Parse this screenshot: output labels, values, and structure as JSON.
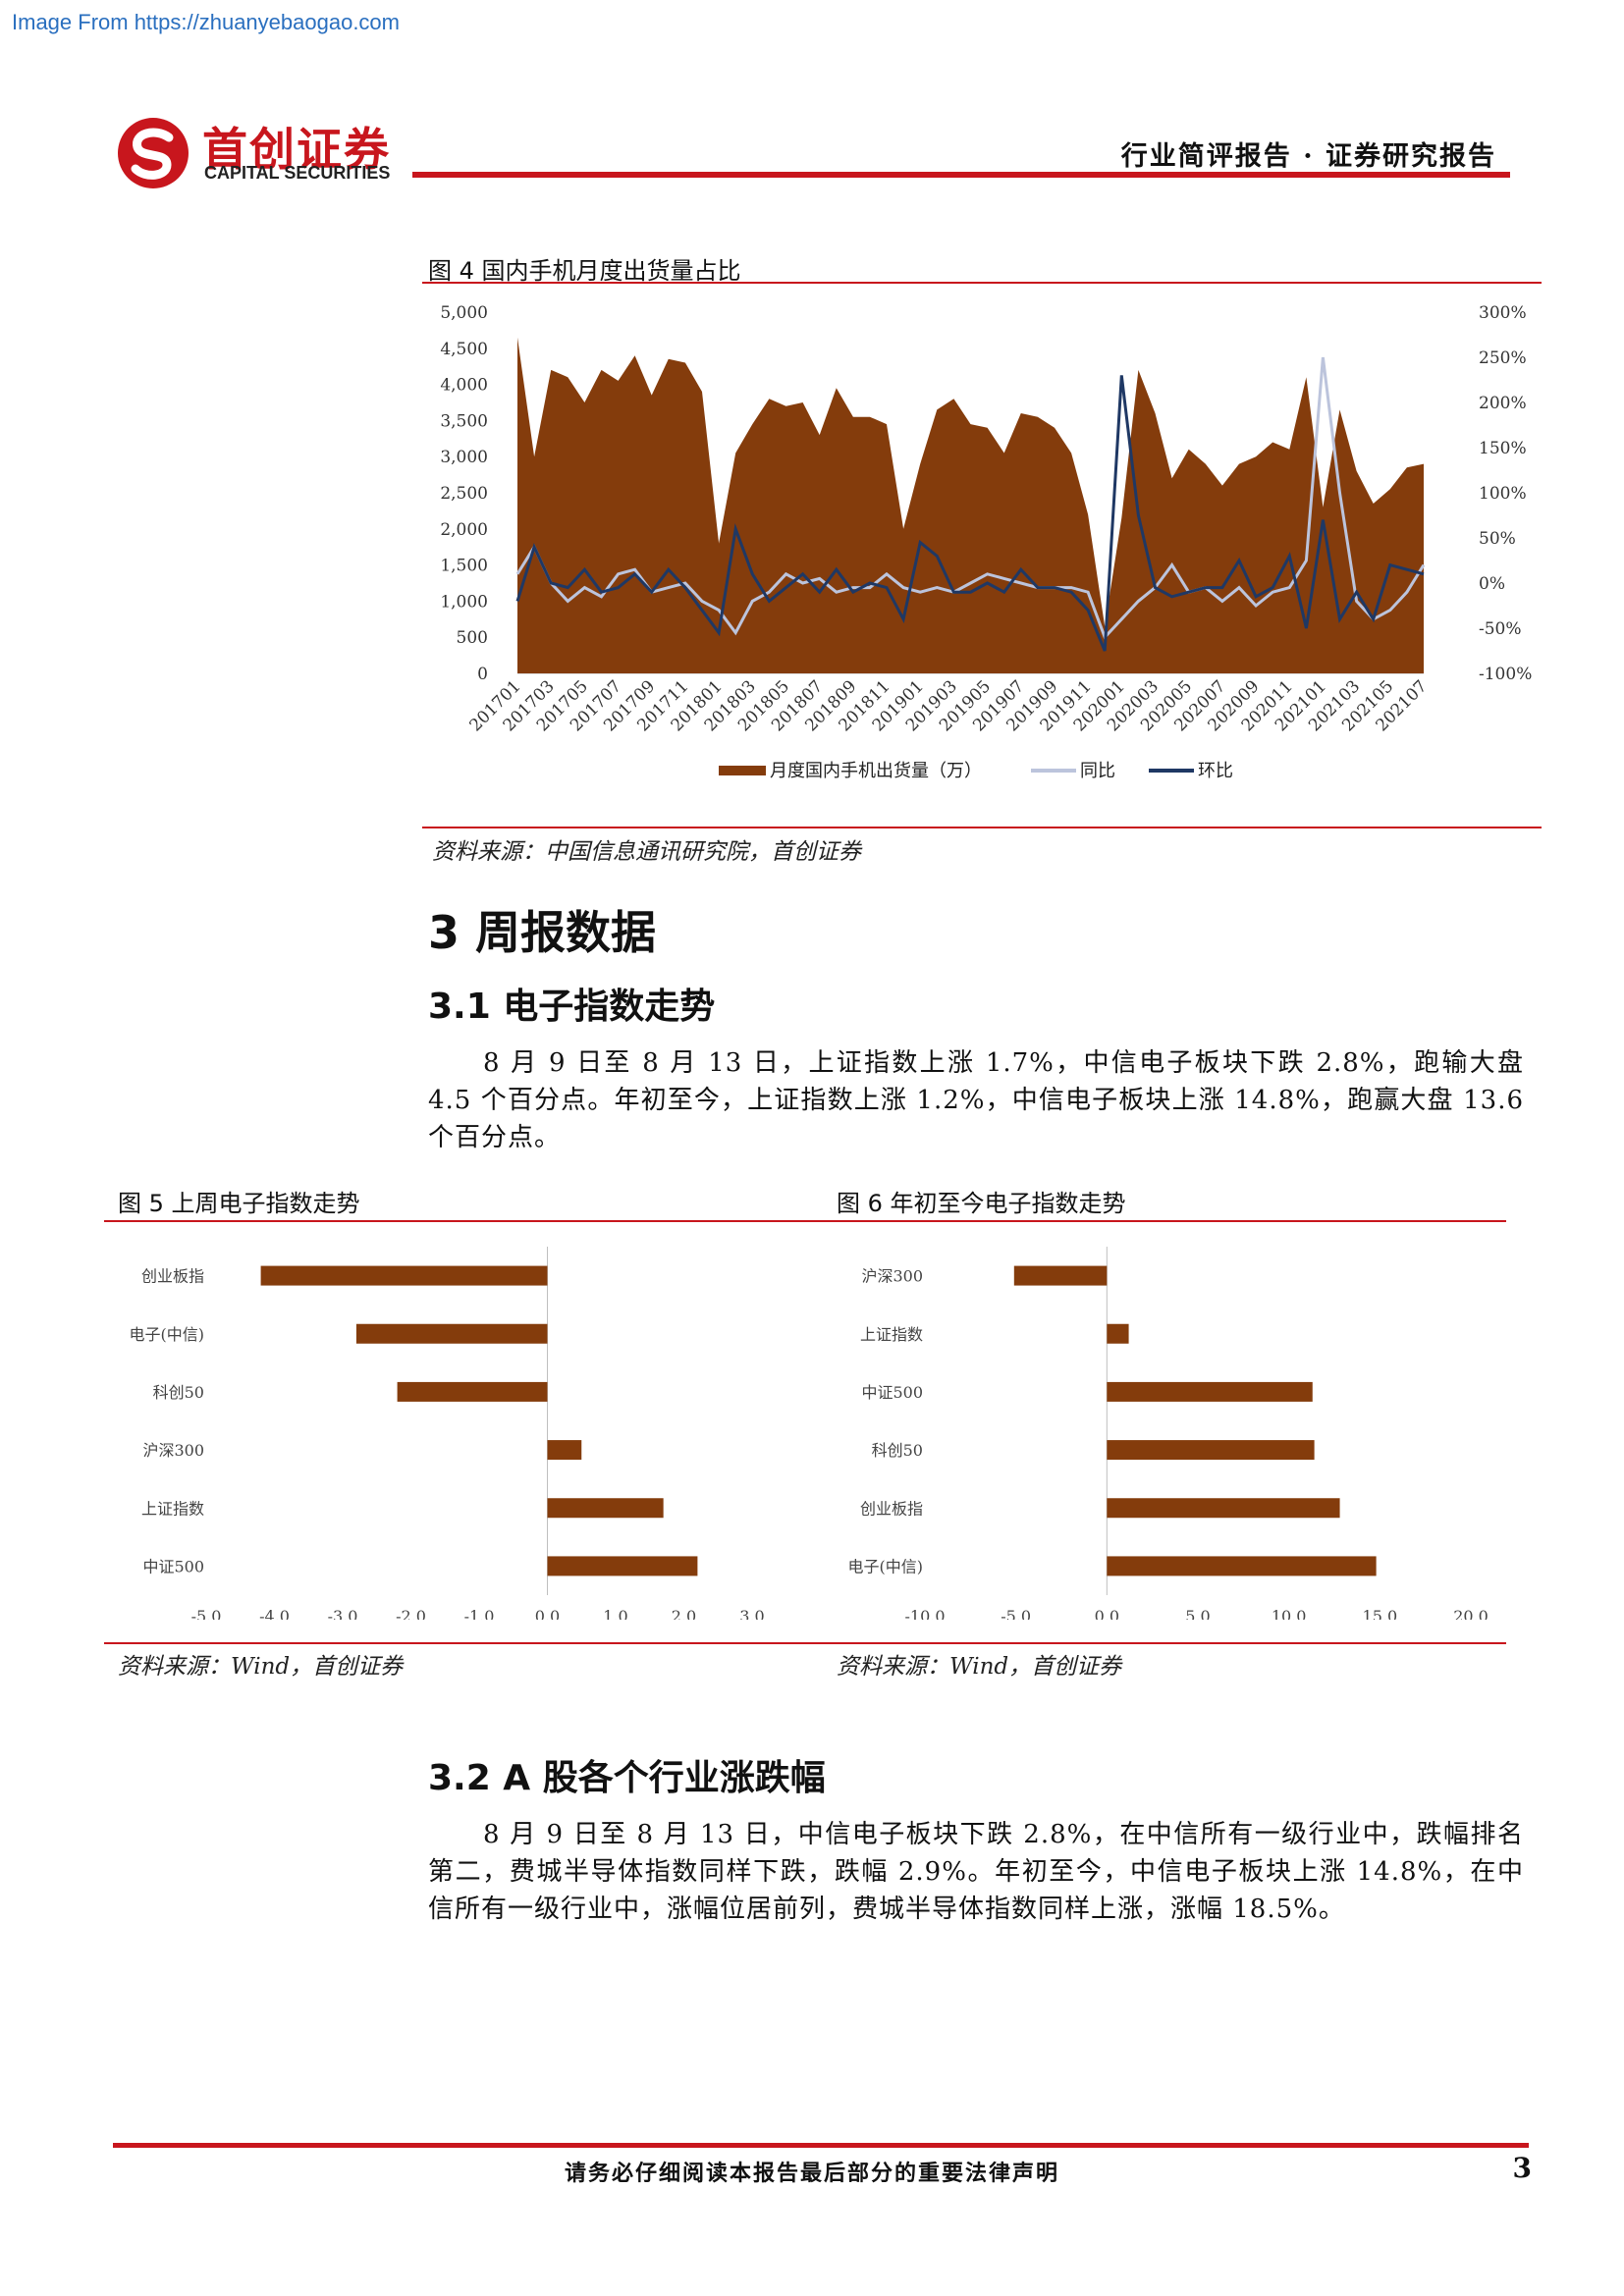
{
  "watermark": "Image From https://zhuanyebaogao.com",
  "header": {
    "logo_cn": "首创证券",
    "logo_en": "CAPITAL SECURITIES",
    "report_type": "行业简评报告 · 证券研究报告",
    "brand_color": "#c8161d"
  },
  "figure4": {
    "title": "图 4  国内手机月度出货量占比",
    "source": "资料来源：中国信息通讯研究院，首创证券"
  },
  "section3": {
    "title": "3  周报数据",
    "sub1_title": "3.1  电子指数走势",
    "sub1_para": "8 月 9 日至 8 月 13 日，上证指数上涨 1.7%，中信电子板块下跌 2.8%，跑输大盘 4.5 个百分点。年初至今，上证指数上涨 1.2%，中信电子板块上涨 14.8%，跑赢大盘 13.6 个百分点。",
    "sub2_title": "3.2  A 股各个行业涨跌幅",
    "sub2_para": "8 月 9 日至 8 月 13 日，中信电子板块下跌 2.8%，在中信所有一级行业中，跌幅排名第二，费城半导体指数同样下跌，跌幅 2.9%。年初至今，中信电子板块上涨 14.8%，在中信所有一级行业中，涨幅位居前列，费城半导体指数同样上涨，涨幅 18.5%。"
  },
  "figure5": {
    "title": "图 5  上周电子指数走势",
    "source": "资料来源：Wind，首创证券"
  },
  "figure6": {
    "title": "图 6  年初至今电子指数走势",
    "source": "资料来源：Wind，首创证券"
  },
  "footer": {
    "disclaimer": "请务必仔细阅读本报告最后部分的重要法律声明",
    "page": "3"
  },
  "chart_data": [
    {
      "type": "area",
      "x": [
        "201701",
        "201702",
        "201703",
        "201704",
        "201705",
        "201706",
        "201707",
        "201708",
        "201709",
        "201710",
        "201711",
        "201712",
        "201801",
        "201802",
        "201803",
        "201804",
        "201805",
        "201806",
        "201807",
        "201808",
        "201809",
        "201810",
        "201811",
        "201812",
        "201901",
        "201902",
        "201903",
        "201904",
        "201905",
        "201906",
        "201907",
        "201908",
        "201909",
        "201910",
        "201911",
        "201912",
        "202001",
        "202002",
        "202003",
        "202004",
        "202005",
        "202006",
        "202007",
        "202008",
        "202009",
        "202010",
        "202011",
        "202012",
        "202101",
        "202102",
        "202103",
        "202104",
        "202105",
        "202106",
        "202107"
      ],
      "x_tick_labels": [
        "201701",
        "201703",
        "201705",
        "201707",
        "201709",
        "201711",
        "201801",
        "201803",
        "201805",
        "201807",
        "201809",
        "201811",
        "201901",
        "201903",
        "201905",
        "201907",
        "201909",
        "201911",
        "202001",
        "202003",
        "202005",
        "202007",
        "202009",
        "202011",
        "202101",
        "202103",
        "202105",
        "202107"
      ],
      "series": [
        {
          "name": "月度国内手机出货量（万）",
          "type": "area",
          "axis": "left",
          "color": "#843c0c",
          "values": [
            4650,
            3000,
            4200,
            4100,
            3750,
            4200,
            4050,
            4400,
            3850,
            4350,
            4300,
            3900,
            1800,
            3050,
            3450,
            3800,
            3700,
            3750,
            3300,
            3950,
            3550,
            3550,
            3450,
            2000,
            2900,
            3650,
            3800,
            3450,
            3400,
            3050,
            3600,
            3550,
            3400,
            3050,
            2200,
            650,
            2150,
            4200,
            3600,
            2700,
            3100,
            2900,
            2600,
            2900,
            3000,
            3200,
            3100,
            4100,
            2300,
            3650,
            2800,
            2350,
            2550,
            2850,
            2900
          ]
        },
        {
          "name": "同比",
          "type": "line",
          "axis": "right",
          "color": "#bcc4dc",
          "values": [
            10,
            40,
            0,
            -20,
            -5,
            -15,
            10,
            15,
            -10,
            -5,
            0,
            -20,
            -30,
            -55,
            -20,
            -10,
            10,
            0,
            5,
            -10,
            -5,
            -5,
            10,
            -5,
            -10,
            -5,
            -10,
            0,
            10,
            5,
            0,
            -5,
            -5,
            -5,
            -10,
            -60,
            -40,
            -20,
            -5,
            20,
            -10,
            -5,
            -20,
            -5,
            -25,
            -10,
            -5,
            25,
            250,
            100,
            -20,
            -40,
            -30,
            -10,
            20
          ]
        },
        {
          "name": "环比",
          "type": "line",
          "axis": "right",
          "color": "#1f3864",
          "values": [
            -20,
            40,
            0,
            -5,
            15,
            -10,
            -5,
            10,
            -10,
            15,
            -5,
            -30,
            -55,
            60,
            10,
            -20,
            -5,
            10,
            -10,
            15,
            -10,
            0,
            -5,
            -40,
            45,
            30,
            -10,
            -10,
            0,
            -10,
            15,
            -5,
            -5,
            -10,
            -30,
            -75,
            230,
            75,
            -5,
            -15,
            -10,
            -5,
            -5,
            25,
            -15,
            -5,
            30,
            -50,
            70,
            -40,
            -10,
            -40,
            20,
            15,
            10
          ]
        }
      ],
      "ylim_left": [
        0,
        5000
      ],
      "left_ticks": [
        "5,000",
        "4,500",
        "4,000",
        "3,500",
        "3,000",
        "2,500",
        "2,000",
        "1,500",
        "1,000",
        "500",
        "0"
      ],
      "ylim_right": [
        -100,
        300
      ],
      "right_ticks": [
        "300%",
        "250%",
        "200%",
        "150%",
        "100%",
        "50%",
        "0%",
        "-50%",
        "-100%"
      ],
      "legend_position": "bottom"
    },
    {
      "type": "bar",
      "orientation": "horizontal",
      "categories": [
        "创业板指",
        "电子(中信)",
        "科创50",
        "沪深300",
        "上证指数",
        "中证500"
      ],
      "values": [
        -4.2,
        -2.8,
        -2.2,
        0.5,
        1.7,
        2.2
      ],
      "xlim": [
        -5,
        3
      ],
      "x_ticks": [
        "-5.0",
        "-4.0",
        "-3.0",
        "-2.0",
        "-1.0",
        "0.0",
        "1.0",
        "2.0",
        "3.0"
      ],
      "color": "#843c0c"
    },
    {
      "type": "bar",
      "orientation": "horizontal",
      "categories": [
        "沪深300",
        "上证指数",
        "中证500",
        "科创50",
        "创业板指",
        "电子(中信)"
      ],
      "values": [
        -5.1,
        1.2,
        11.3,
        11.4,
        12.8,
        14.8
      ],
      "xlim": [
        -10,
        20
      ],
      "x_ticks": [
        "-10.0",
        "-5.0",
        "0.0",
        "5.0",
        "10.0",
        "15.0",
        "20.0"
      ],
      "color": "#843c0c"
    }
  ]
}
